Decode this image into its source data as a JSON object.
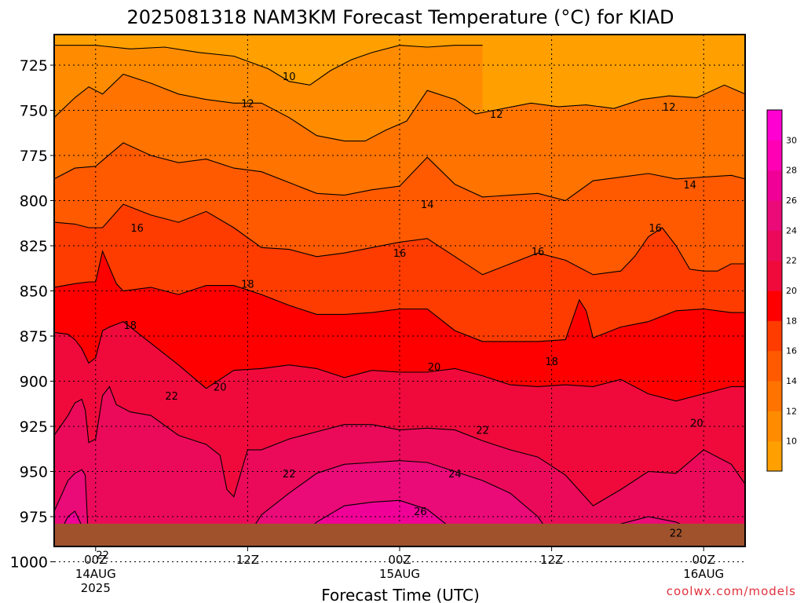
{
  "chart_data": {
    "type": "heatmap",
    "title": "2025081318 NAM3KM Forecast Temperature (°C) for KIAD",
    "xlabel": "Forecast Time (UTC)",
    "credit": "coolwx.com/models",
    "y_axis": {
      "ticks": [
        "725",
        "750",
        "775",
        "800",
        "825",
        "850",
        "875",
        "900",
        "925",
        "950",
        "975",
        "1000"
      ]
    },
    "x_axis": {
      "ticks": [
        {
          "l1": "00Z",
          "l2": "14AUG",
          "l3": "2025"
        },
        {
          "l1": "12Z",
          "l2": "",
          "l3": ""
        },
        {
          "l1": "00Z",
          "l2": "15AUG",
          "l3": ""
        },
        {
          "l1": "12Z",
          "l2": "",
          "l3": ""
        },
        {
          "l1": "00Z",
          "l2": "16AUG",
          "l3": ""
        }
      ]
    },
    "colorbar": {
      "ticks": [
        "10",
        "12",
        "14",
        "16",
        "18",
        "20",
        "22",
        "24",
        "26",
        "28",
        "30"
      ],
      "colors": [
        "#ffa000",
        "#ff8c00",
        "#ff7300",
        "#ff5a00",
        "#ff3c00",
        "#ff0000",
        "#f00a3c",
        "#eb0a5a",
        "#ea0a78",
        "#f00096",
        "#ff00b4",
        "#ff00d2"
      ]
    },
    "contour_labels": [
      {
        "text": "10",
        "t": 28.0,
        "p": 731
      },
      {
        "text": "12",
        "t": 22.0,
        "p": 746
      },
      {
        "text": "12",
        "t": 58.0,
        "p": 752
      },
      {
        "text": "12",
        "t": 83.0,
        "p": 748
      },
      {
        "text": "14",
        "t": 48.0,
        "p": 802
      },
      {
        "text": "14",
        "t": 86.0,
        "p": 791
      },
      {
        "text": "16",
        "t": 6.0,
        "p": 815
      },
      {
        "text": "16",
        "t": 44.0,
        "p": 829
      },
      {
        "text": "16",
        "t": 64.0,
        "p": 828
      },
      {
        "text": "16",
        "t": 81.0,
        "p": 815
      },
      {
        "text": "18",
        "t": 22.0,
        "p": 846
      },
      {
        "text": "18",
        "t": 5.0,
        "p": 869
      },
      {
        "text": "18",
        "t": 66.0,
        "p": 889
      },
      {
        "text": "20",
        "t": 49.0,
        "p": 892
      },
      {
        "text": "20",
        "t": 18.0,
        "p": 903
      },
      {
        "text": "20",
        "t": 87.0,
        "p": 923
      },
      {
        "text": "22",
        "t": 11.0,
        "p": 908
      },
      {
        "text": "22",
        "t": 56.0,
        "p": 927
      },
      {
        "text": "22",
        "t": 28.0,
        "p": 951
      },
      {
        "text": "22",
        "t": 1.0,
        "p": 996
      },
      {
        "text": "22",
        "t": 84.0,
        "p": 984
      },
      {
        "text": "24",
        "t": 52.0,
        "p": 951
      },
      {
        "text": "26",
        "t": 47.0,
        "p": 972
      }
    ],
    "isotherms": [
      {
        "temp": 10,
        "t": [
          -6,
          0,
          5,
          10,
          15,
          20,
          25,
          28,
          31,
          34,
          37,
          40,
          44,
          48,
          52,
          56
        ],
        "p": [
          714,
          714,
          716,
          715,
          718,
          720,
          727,
          734,
          736,
          728,
          722,
          718,
          714,
          715,
          714,
          714
        ]
      },
      {
        "temp": 12,
        "t": [
          -6,
          -3,
          -1,
          1,
          4,
          8,
          12,
          16,
          20,
          24,
          28,
          32,
          36,
          39,
          42,
          45,
          48,
          52,
          55,
          59,
          63,
          67,
          71,
          75,
          79,
          83,
          87,
          91,
          94
        ],
        "p": [
          754,
          743,
          737,
          741,
          730,
          735,
          741,
          744,
          746,
          746,
          754,
          764,
          767,
          767,
          761,
          756,
          739,
          744,
          752,
          749,
          746,
          748,
          747,
          749,
          744,
          742,
          743,
          736,
          741
        ]
      },
      {
        "temp": 14,
        "t": [
          -6,
          -3,
          0,
          4,
          8,
          12,
          16,
          20,
          24,
          28,
          32,
          36,
          40,
          44,
          48,
          52,
          56,
          60,
          64,
          68,
          72,
          76,
          80,
          84,
          88,
          92,
          94
        ],
        "p": [
          788,
          782,
          781,
          768,
          775,
          779,
          777,
          782,
          784,
          790,
          796,
          797,
          794,
          792,
          776,
          791,
          798,
          797,
          796,
          800,
          789,
          787,
          785,
          788,
          787,
          786,
          788
        ]
      },
      {
        "temp": 16,
        "t": [
          -6,
          -3,
          -1,
          1,
          4,
          8,
          12,
          16,
          20,
          24,
          28,
          32,
          36,
          40,
          44,
          48,
          52,
          56,
          60,
          64,
          68,
          72,
          76,
          78,
          80,
          82,
          84,
          86,
          88,
          90,
          92,
          94
        ],
        "p": [
          812,
          813,
          815,
          815,
          802,
          808,
          812,
          806,
          815,
          826,
          827,
          831,
          829,
          826,
          823,
          821,
          831,
          841,
          835,
          829,
          833,
          841,
          839,
          831,
          820,
          815,
          825,
          838,
          839,
          839,
          835,
          835
        ]
      },
      {
        "temp": 18,
        "t": [
          -6,
          -3,
          -1,
          0,
          1,
          3,
          4,
          8,
          12,
          16,
          20,
          24,
          28,
          32,
          36,
          40,
          44,
          48,
          52,
          56,
          60,
          64,
          68,
          70,
          71,
          72,
          76,
          80,
          84,
          88,
          92,
          94
        ],
        "p": [
          848,
          846,
          845,
          845,
          828,
          846,
          850,
          848,
          852,
          847,
          847,
          852,
          858,
          863,
          863,
          862,
          860,
          860,
          872,
          878,
          878,
          878,
          877,
          855,
          861,
          876,
          870,
          867,
          861,
          860,
          862,
          862
        ]
      },
      {
        "temp": 20,
        "t": [
          -6,
          -4,
          -3,
          -2,
          -1,
          0,
          1,
          2,
          4,
          8,
          12,
          16,
          20,
          24,
          28,
          32,
          36,
          40,
          44,
          48,
          52,
          56,
          60,
          64,
          68,
          72,
          76,
          80,
          84,
          88,
          92,
          94
        ],
        "p": [
          873,
          874,
          877,
          882,
          890,
          887,
          872,
          870,
          867,
          879,
          891,
          904,
          894,
          893,
          891,
          893,
          898,
          894,
          895,
          895,
          893,
          897,
          902,
          903,
          902,
          903,
          899,
          907,
          911,
          907,
          903,
          903
        ]
      },
      {
        "temp": 22,
        "t": [
          -6,
          -4,
          -3,
          -2,
          -1.5,
          -1,
          0,
          1,
          2,
          3,
          5,
          8,
          12,
          16,
          18,
          19,
          20,
          22,
          24,
          28,
          32,
          36,
          40,
          44,
          48,
          52,
          56,
          60,
          64,
          68,
          72,
          76,
          80,
          84,
          88,
          92,
          94
        ],
        "p": [
          930,
          919,
          912,
          910,
          916,
          934,
          932,
          908,
          903,
          913,
          917,
          919,
          930,
          935,
          941,
          960,
          964,
          938,
          938,
          932,
          928,
          924,
          924,
          927,
          926,
          927,
          933,
          938,
          942,
          952,
          969,
          960,
          950,
          951,
          938,
          946,
          957
        ]
      },
      {
        "temp": 24,
        "t": [
          -6,
          -4,
          -3,
          -2,
          -1.5,
          -1,
          20,
          22,
          24,
          28,
          32,
          36,
          40,
          44,
          48,
          52,
          56,
          60,
          64,
          66,
          68,
          70,
          72,
          76,
          80,
          84,
          88,
          90,
          92,
          94
        ],
        "p": [
          972,
          955,
          951,
          949,
          952,
          1003,
          1003,
          986,
          974,
          962,
          951,
          946,
          945,
          944,
          945,
          950,
          955,
          962,
          975,
          986,
          995,
          1003,
          996,
          979,
          975,
          978,
          985,
          994,
          1000,
          1003
        ]
      },
      {
        "temp": 26,
        "t": [
          -6,
          -4,
          -3,
          -2,
          -1.5,
          -1,
          26,
          28,
          32,
          36,
          40,
          44,
          48,
          52,
          56,
          58,
          60
        ],
        "p": [
          990,
          975,
          972,
          980,
          990,
          1003,
          1003,
          995,
          978,
          969,
          967,
          966,
          971,
          983,
          996,
          1003,
          1003
        ]
      },
      {
        "temp": 28,
        "t": [
          -5,
          -4,
          -3.5,
          -3,
          -2.5,
          30,
          32,
          36,
          40,
          44,
          47,
          50
        ],
        "p": [
          1003,
          995,
          990,
          993,
          1003,
          1003,
          997,
          986,
          984,
          986,
          995,
          1003
        ]
      }
    ]
  }
}
